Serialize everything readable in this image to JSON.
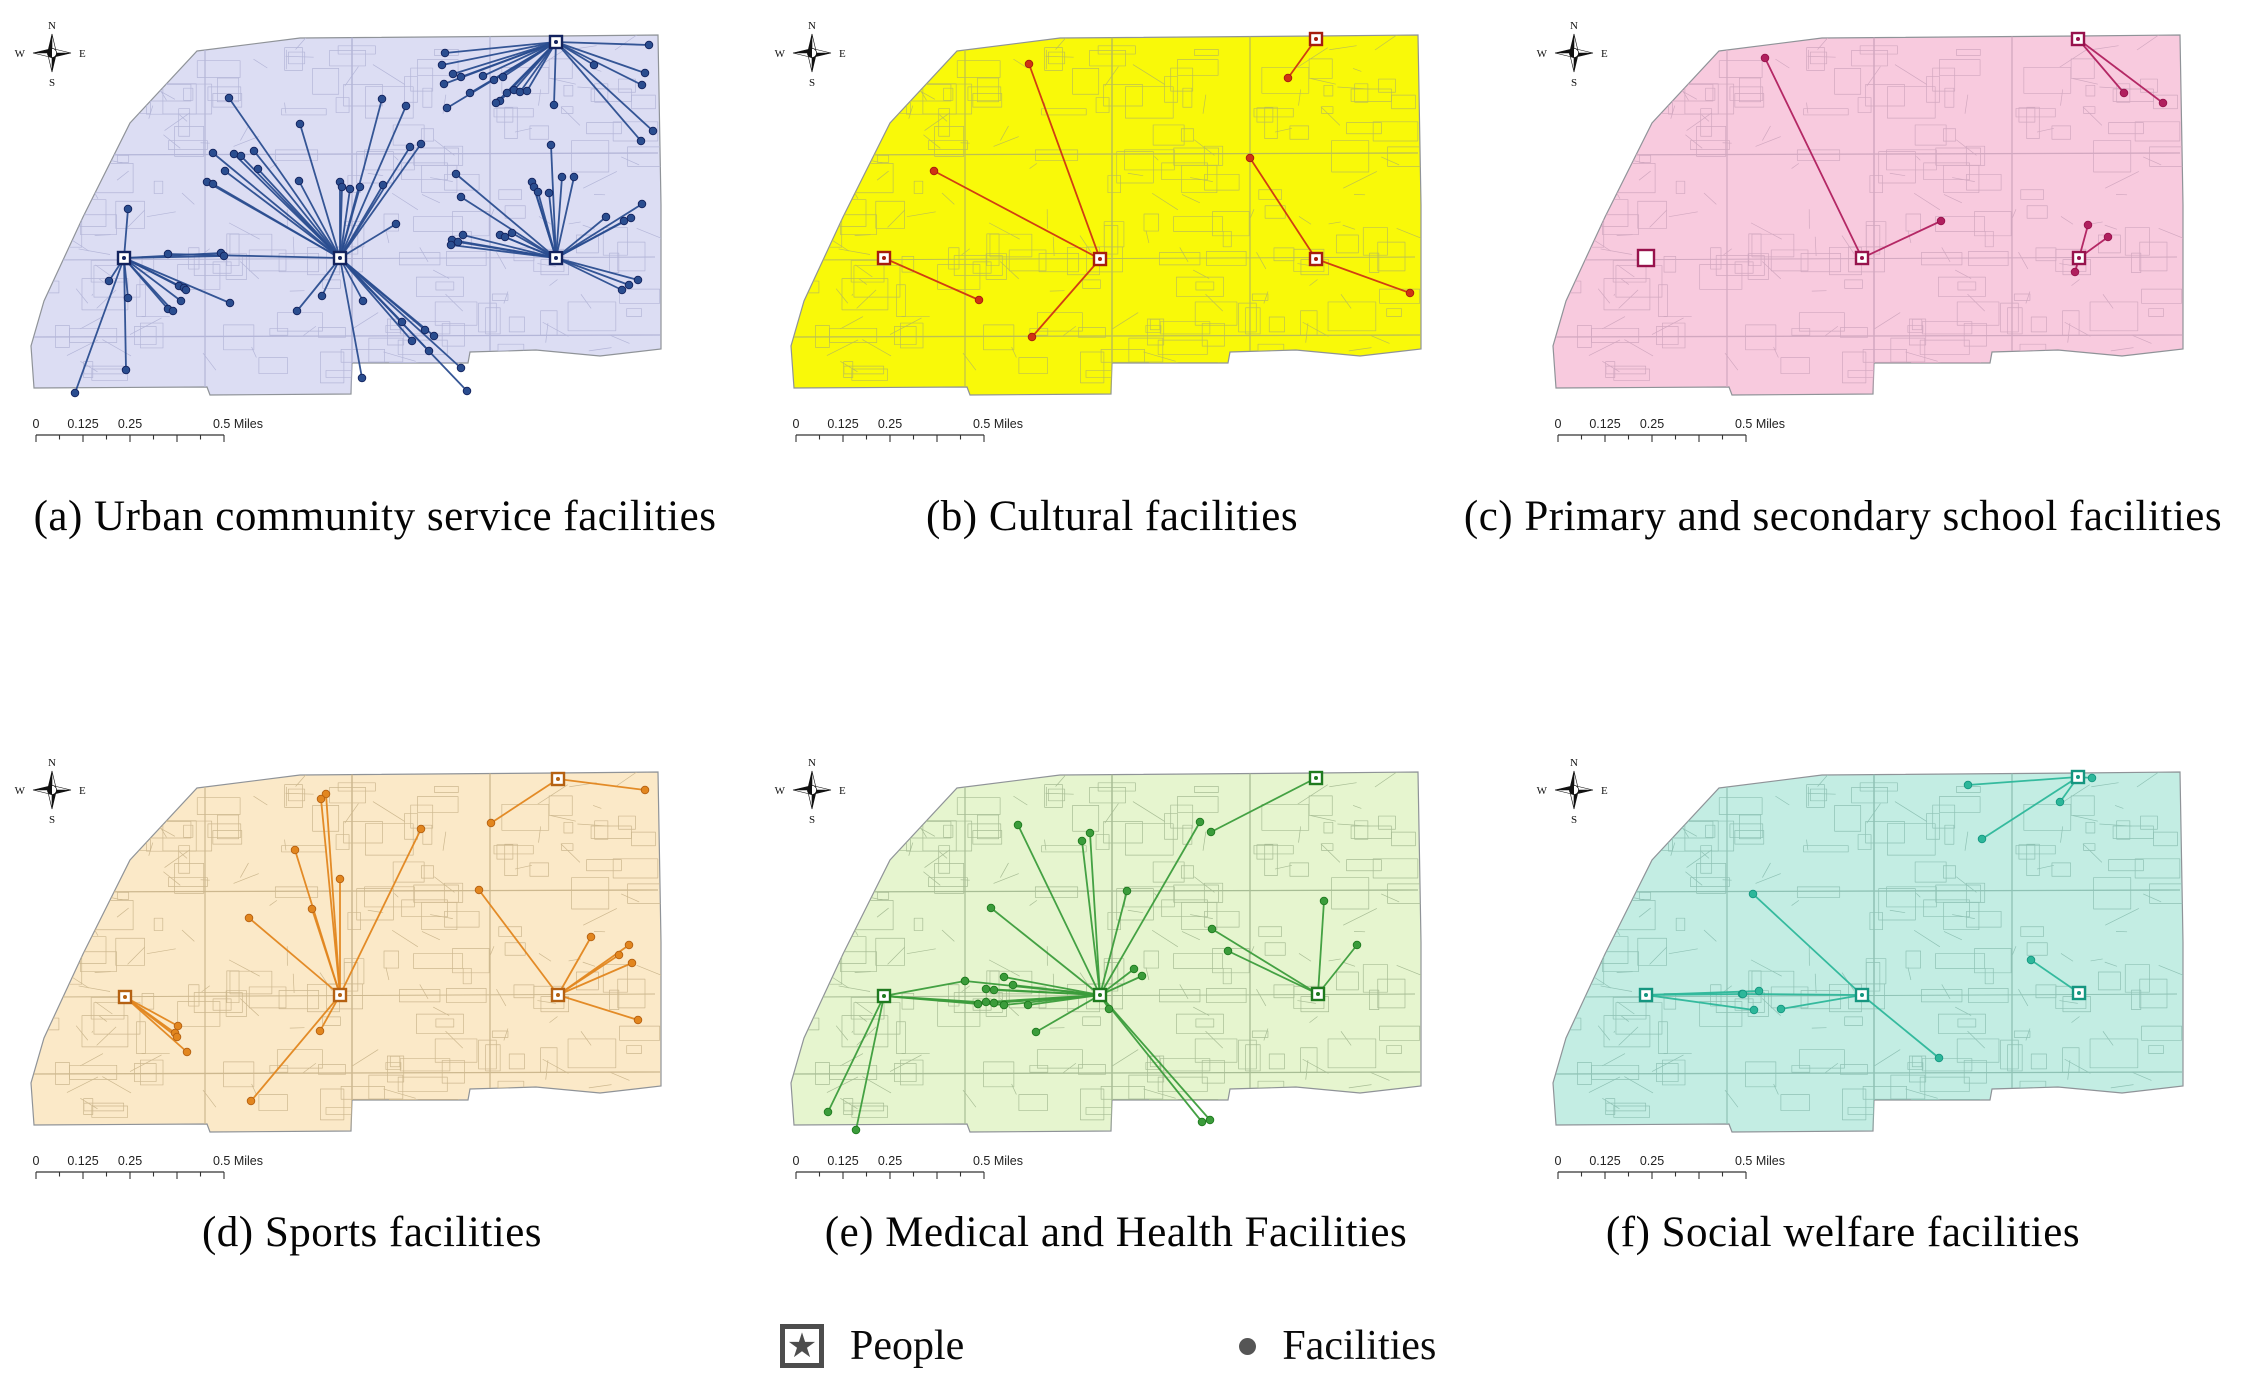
{
  "legend": {
    "people_label": "People",
    "facilities_label": "Facilities"
  },
  "compass": {
    "n": "N",
    "e": "E",
    "s": "S",
    "w": "W"
  },
  "scalebar": {
    "labels": [
      "0",
      "0.125",
      "0.25",
      "0.5 Miles"
    ]
  },
  "panels": [
    {
      "id": "a",
      "caption": "(a) Urban community service facilities",
      "caption_center": 375,
      "map_fill": "#dcddf3",
      "street_color": "#b4b6d8",
      "line_color": "#2a4d8f",
      "marker_color": "#13235e",
      "hubs": [
        [
          556,
          37
        ],
        [
          124,
          253
        ],
        [
          340,
          253
        ],
        [
          556,
          253
        ]
      ],
      "links": [
        {
          "hub": 0,
          "points": [
            [
              445,
              48
            ],
            [
              442,
              60
            ],
            [
              453,
              69
            ],
            [
              461,
              72
            ],
            [
              470,
              88
            ],
            [
              483,
              71
            ],
            [
              494,
              75
            ],
            [
              503,
              72
            ],
            [
              507,
              88
            ],
            [
              514,
              85
            ],
            [
              520,
              87
            ],
            [
              527,
              86
            ],
            [
              500,
              96
            ],
            [
              496,
              98
            ],
            [
              444,
              79
            ],
            [
              447,
              103
            ],
            [
              594,
              60
            ],
            [
              645,
              68
            ],
            [
              642,
              80
            ],
            [
              649,
              40
            ],
            [
              554,
              100
            ],
            [
              641,
              136
            ],
            [
              653,
              126
            ]
          ]
        },
        {
          "hub": 1,
          "points": [
            [
              109,
              276
            ],
            [
              128,
              293
            ],
            [
              126,
              365
            ],
            [
              75,
              388
            ],
            [
              179,
              281
            ],
            [
              184,
              283
            ],
            [
              186,
              285
            ],
            [
              168,
              304
            ],
            [
              173,
              306
            ],
            [
              181,
              296
            ],
            [
              230,
              298
            ],
            [
              221,
              248
            ],
            [
              224,
              251
            ],
            [
              128,
              204
            ]
          ]
        },
        {
          "hub": 2,
          "points": [
            [
              229,
              93
            ],
            [
              300,
              119
            ],
            [
              213,
              148
            ],
            [
              234,
              149
            ],
            [
              241,
              151
            ],
            [
              254,
              146
            ],
            [
              258,
              164
            ],
            [
              225,
              166
            ],
            [
              207,
              177
            ],
            [
              213,
              179
            ],
            [
              299,
              176
            ],
            [
              340,
              177
            ],
            [
              342,
              182
            ],
            [
              350,
              184
            ],
            [
              360,
              182
            ],
            [
              382,
              94
            ],
            [
              406,
              101
            ],
            [
              410,
              142
            ],
            [
              421,
              139
            ],
            [
              383,
              180
            ],
            [
              396,
              219
            ],
            [
              322,
              291
            ],
            [
              363,
              296
            ],
            [
              402,
              317
            ],
            [
              425,
              325
            ],
            [
              434,
              331
            ],
            [
              412,
              336
            ],
            [
              429,
              346
            ],
            [
              461,
              363
            ],
            [
              467,
              386
            ],
            [
              362,
              373
            ],
            [
              297,
              306
            ],
            [
              168,
              249
            ]
          ]
        },
        {
          "hub": 3,
          "points": [
            [
              456,
              169
            ],
            [
              461,
              192
            ],
            [
              463,
              230
            ],
            [
              452,
              235
            ],
            [
              458,
              237
            ],
            [
              451,
              240
            ],
            [
              500,
              230
            ],
            [
              505,
              232
            ],
            [
              512,
              228
            ],
            [
              532,
              177
            ],
            [
              534,
              182
            ],
            [
              538,
              187
            ],
            [
              549,
              188
            ],
            [
              562,
              172
            ],
            [
              574,
              172
            ],
            [
              551,
              140
            ],
            [
              606,
              212
            ],
            [
              624,
              216
            ],
            [
              631,
              213
            ],
            [
              642,
              199
            ],
            [
              629,
              280
            ],
            [
              638,
              275
            ],
            [
              622,
              285
            ]
          ]
        }
      ]
    },
    {
      "id": "b",
      "caption": "(b) Cultural facilities",
      "caption_center": 1112,
      "map_fill": "#f9f909",
      "street_color": "#bdc052",
      "line_color": "#cf3413",
      "marker_color": "#a61c0e",
      "hubs": [
        [
          556,
          34
        ],
        [
          124,
          253
        ],
        [
          340,
          254
        ],
        [
          556,
          254
        ]
      ],
      "links": [
        {
          "hub": 0,
          "points": [
            [
              528,
              73
            ]
          ]
        },
        {
          "hub": 1,
          "points": [
            [
              219,
              295
            ]
          ]
        },
        {
          "hub": 2,
          "points": [
            [
              269,
              59
            ],
            [
              174,
              166
            ],
            [
              272,
              332
            ]
          ]
        },
        {
          "hub": 3,
          "points": [
            [
              490,
              153
            ],
            [
              650,
              288
            ]
          ]
        }
      ]
    },
    {
      "id": "c",
      "caption": "(c) Primary and secondary school facilities",
      "caption_center": 1843,
      "map_fill": "#f8cade",
      "street_color": "#d2a8c0",
      "line_color": "#b01f5e",
      "marker_color": "#97124c",
      "hubs": [
        [
          556,
          34
        ],
        [
          124,
          253,
          1
        ],
        [
          340,
          253
        ],
        [
          557,
          253
        ]
      ],
      "links": [
        {
          "hub": 0,
          "points": [
            [
              602,
              88
            ],
            [
              641,
              98
            ]
          ]
        },
        {
          "hub": 2,
          "points": [
            [
              243,
              53
            ],
            [
              419,
              216
            ]
          ]
        },
        {
          "hub": 3,
          "points": [
            [
              566,
              220
            ],
            [
              586,
              232
            ],
            [
              553,
              267
            ]
          ]
        }
      ]
    },
    {
      "id": "d",
      "caption": "(d) Sports facilities",
      "caption_center": 372,
      "map_fill": "#fbe9c8",
      "street_color": "#cdb88f",
      "line_color": "#e2861f",
      "marker_color": "#b56112",
      "hubs": [
        [
          558,
          37
        ],
        [
          125,
          255
        ],
        [
          340,
          253
        ],
        [
          558,
          253
        ]
      ],
      "links": [
        {
          "hub": 0,
          "points": [
            [
              645,
              48
            ],
            [
              491,
              81
            ]
          ]
        },
        {
          "hub": 1,
          "points": [
            [
              178,
              284
            ],
            [
              175,
              291
            ],
            [
              177,
              295
            ],
            [
              187,
              310
            ]
          ]
        },
        {
          "hub": 2,
          "points": [
            [
              326,
              52
            ],
            [
              321,
              57
            ],
            [
              295,
              108
            ],
            [
              340,
              137
            ],
            [
              312,
              167
            ],
            [
              249,
              176
            ],
            [
              421,
              87
            ],
            [
              320,
              289
            ],
            [
              251,
              359
            ]
          ]
        },
        {
          "hub": 3,
          "points": [
            [
              479,
              148
            ],
            [
              591,
              195
            ],
            [
              629,
              203
            ],
            [
              619,
              213
            ],
            [
              632,
              221
            ],
            [
              638,
              278
            ]
          ]
        }
      ]
    },
    {
      "id": "e",
      "caption": "(e) Medical and Health Facilities",
      "caption_center": 1116,
      "map_fill": "#e6f5cf",
      "street_color": "#a8bd95",
      "line_color": "#3b9c3b",
      "marker_color": "#1f7a1f",
      "hubs": [
        [
          556,
          36
        ],
        [
          124,
          254
        ],
        [
          340,
          253
        ],
        [
          558,
          252
        ]
      ],
      "links": [
        {
          "hub": 0,
          "points": [
            [
              451,
              90
            ]
          ]
        },
        {
          "hub": 1,
          "points": [
            [
              68,
              370
            ],
            [
              96,
              388
            ],
            [
              205,
              239
            ],
            [
              218,
              262
            ],
            [
              234,
              261
            ],
            [
              244,
              263
            ]
          ]
        },
        {
          "hub": 2,
          "points": [
            [
              258,
              83
            ],
            [
              322,
              99
            ],
            [
              330,
              91
            ],
            [
              367,
              149
            ],
            [
              231,
              166
            ],
            [
              440,
              80
            ],
            [
              205,
              239
            ],
            [
              226,
              247
            ],
            [
              234,
              248
            ],
            [
              244,
              235
            ],
            [
              253,
              243
            ],
            [
              218,
              262
            ],
            [
              226,
              260
            ],
            [
              234,
              261
            ],
            [
              244,
              263
            ],
            [
              268,
              263
            ],
            [
              374,
              227
            ],
            [
              382,
              234
            ],
            [
              349,
              267
            ],
            [
              276,
              290
            ],
            [
              450,
              378
            ],
            [
              442,
              380
            ]
          ]
        },
        {
          "hub": 3,
          "points": [
            [
              452,
              187
            ],
            [
              468,
              209
            ],
            [
              564,
              159
            ],
            [
              597,
              203
            ]
          ]
        }
      ]
    },
    {
      "id": "f",
      "caption": "(f) Social welfare facilities",
      "caption_center": 1843,
      "map_fill": "#c3ede3",
      "street_color": "#8fc2b5",
      "line_color": "#2db79a",
      "marker_color": "#159680",
      "hubs": [
        [
          556,
          35
        ],
        [
          124,
          253
        ],
        [
          340,
          253
        ],
        [
          557,
          251
        ]
      ],
      "links": [
        {
          "hub": 0,
          "points": [
            [
              446,
              43
            ],
            [
              538,
              60
            ],
            [
              460,
              97
            ],
            [
              570,
              36
            ]
          ]
        },
        {
          "hub": 1,
          "points": [
            [
              220,
              252
            ],
            [
              237,
              249
            ],
            [
              232,
              268
            ]
          ]
        },
        {
          "hub": 2,
          "points": [
            [
              231,
              152
            ],
            [
              417,
              316
            ],
            [
              259,
              267
            ],
            [
              221,
              252
            ]
          ]
        },
        {
          "hub": 3,
          "points": [
            [
              509,
              218
            ]
          ]
        }
      ]
    }
  ]
}
